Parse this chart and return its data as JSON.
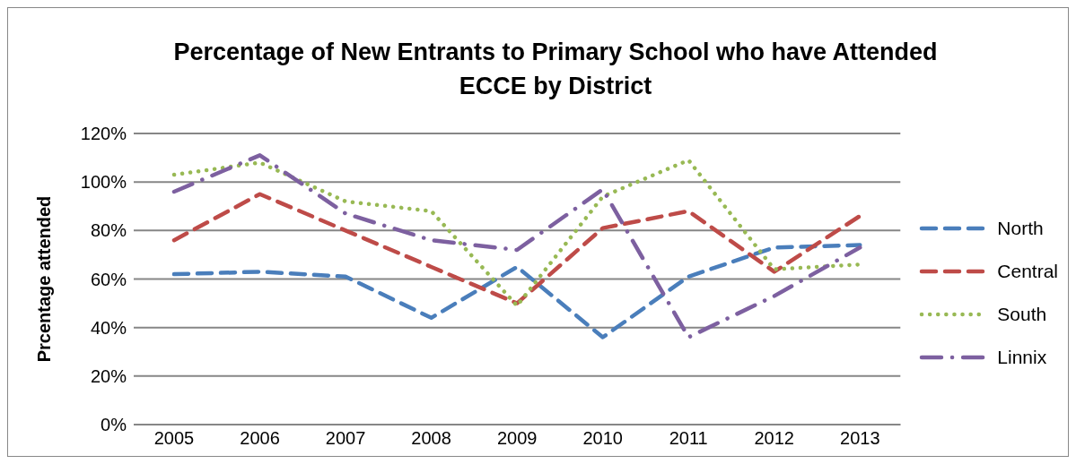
{
  "chart_data": {
    "type": "line",
    "title": "Percentage of New Entrants to Primary School who have Attended ECCE by District",
    "ylabel": "Prcentage attended",
    "categories": [
      "2005",
      "2006",
      "2007",
      "2008",
      "2009",
      "2010",
      "2011",
      "2012",
      "2013"
    ],
    "series": [
      {
        "name": "North",
        "color": "#4a7ebb",
        "line_style": "dashed",
        "values": [
          62,
          63,
          61,
          44,
          65,
          36,
          61,
          73,
          74
        ]
      },
      {
        "name": "Central",
        "color": "#be4b48",
        "line_style": "dashed",
        "values": [
          76,
          95,
          80,
          65,
          50,
          81,
          88,
          63,
          86
        ]
      },
      {
        "name": "South",
        "color": "#98b954",
        "line_style": "dotted",
        "values": [
          103,
          108,
          92,
          88,
          49,
          94,
          109,
          64,
          66
        ]
      },
      {
        "name": "Linnix",
        "color": "#7d60a0",
        "line_style": "dashdot",
        "values": [
          96,
          111,
          87,
          76,
          72,
          97,
          36,
          53,
          73
        ]
      }
    ],
    "ylim": [
      0,
      120
    ],
    "yticks": [
      {
        "value": 0,
        "label": "0%"
      },
      {
        "value": 20,
        "label": "20%"
      },
      {
        "value": 40,
        "label": "40%"
      },
      {
        "value": 60,
        "label": "60%"
      },
      {
        "value": 80,
        "label": "80%"
      },
      {
        "value": 100,
        "label": "100%"
      },
      {
        "value": 120,
        "label": "120%"
      }
    ],
    "grid": "y",
    "legend": "right",
    "marker": "none"
  }
}
